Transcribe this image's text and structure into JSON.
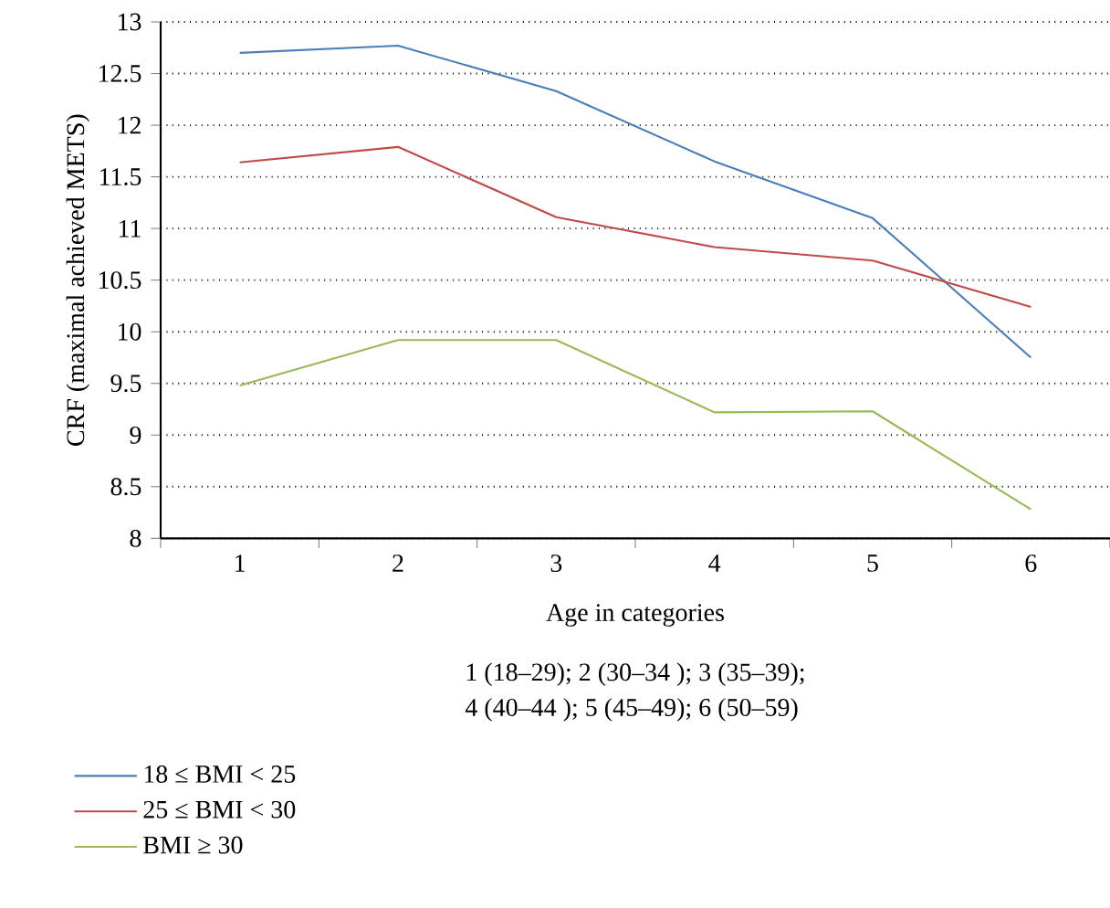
{
  "chart_data": {
    "type": "line",
    "xlabel": "Age in categories",
    "ylabel": "CRF (maximal achieved METS)",
    "categories": [
      "1",
      "2",
      "3",
      "4",
      "5",
      "6"
    ],
    "series": [
      {
        "name": "18 ≤ BMI < 25",
        "color": "#4a7ebb",
        "values": [
          12.7,
          12.77,
          12.33,
          11.65,
          11.1,
          9.75
        ]
      },
      {
        "name": "25 ≤ BMI < 30",
        "color": "#be4b48",
        "values": [
          11.64,
          11.79,
          11.11,
          10.82,
          10.69,
          10.24
        ]
      },
      {
        "name": "BMI ≥ 30",
        "color": "#98b954",
        "values": [
          9.48,
          9.92,
          9.92,
          9.22,
          9.23,
          8.28
        ]
      }
    ],
    "ylim": [
      8,
      13
    ],
    "yticks": [
      8,
      8.5,
      9,
      9.5,
      10,
      10.5,
      11,
      11.5,
      12,
      12.5,
      13
    ],
    "grid": "y",
    "legend": "bottom",
    "marker": "none",
    "line_style": "solid",
    "annotations": [
      "1 (18–29); 2 (30–34 ); 3 (35–39);",
      "4 (40–44 ); 5 (45–49); 6 (50–59)"
    ]
  }
}
